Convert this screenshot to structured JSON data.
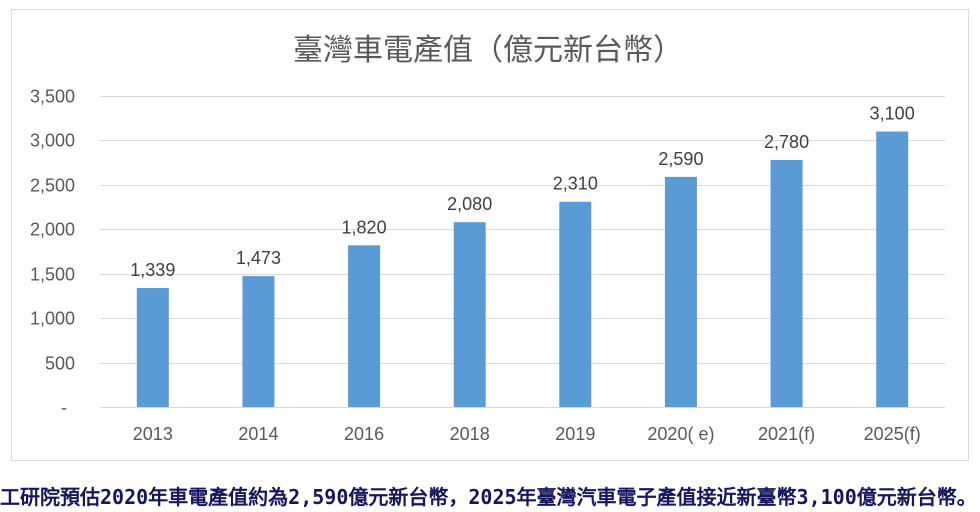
{
  "colors": {
    "bar": "#5B9BD5",
    "text": "#595959",
    "data_label": "#404040",
    "gridline": "#D9D9D9",
    "frame_border": "#D9D9D9",
    "caption": "#151560",
    "background": "#FFFFFF"
  },
  "page": {
    "caption": "工研院預估2020年車電產值約為2,590億元新台幣，2025年臺灣汽車電子產值接近新臺幣3,100億元新台幣。"
  },
  "chart_data": {
    "type": "bar",
    "title": "臺灣車電產值（億元新台幣）",
    "categories": [
      "2013",
      "2014",
      "2016",
      "2018",
      "2019",
      "2020( e)",
      "2021(f)",
      "2025(f)"
    ],
    "values": [
      1339,
      1473,
      1820,
      2080,
      2310,
      2590,
      2780,
      3100
    ],
    "data_labels": [
      "1,339",
      "1,473",
      "1,820",
      "2,080",
      "2,310",
      "2,590",
      "2,780",
      "3,100"
    ],
    "y_ticks": [
      0,
      500,
      1000,
      1500,
      2000,
      2500,
      3000,
      3500
    ],
    "y_tick_labels": [
      "-",
      "500",
      "1,000",
      "1,500",
      "2,000",
      "2,500",
      "3,000",
      "3,500"
    ],
    "ylim": [
      0,
      3500
    ],
    "grid": true
  }
}
